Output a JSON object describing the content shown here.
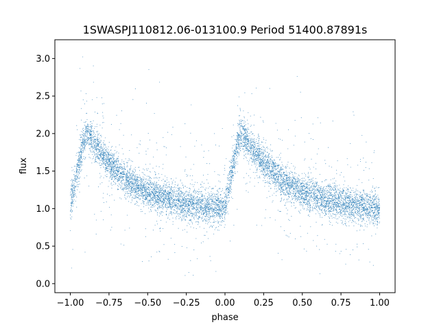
{
  "chart_data": {
    "type": "scatter",
    "title": "1SWASPJ110812.06-013100.9 Period 51400.87891s",
    "xlabel": "phase",
    "ylabel": "flux",
    "xlim": [
      -1.1,
      1.1
    ],
    "ylim": [
      -0.12,
      3.25
    ],
    "xticks": [
      -1.0,
      -0.75,
      -0.5,
      -0.25,
      0.0,
      0.25,
      0.5,
      0.75,
      1.0
    ],
    "xtick_labels": [
      "−1.00",
      "−0.75",
      "−0.50",
      "−0.25",
      "0.00",
      "0.25",
      "0.50",
      "0.75",
      "1.00"
    ],
    "yticks": [
      0.0,
      0.5,
      1.0,
      1.5,
      2.0,
      2.5,
      3.0
    ],
    "ytick_labels": [
      "0.0",
      "0.5",
      "1.0",
      "1.5",
      "2.0",
      "2.5",
      "3.0"
    ],
    "grid": false,
    "marker_color": "#1f77b4",
    "series": [
      {
        "profile": {
          "phase": [
            0.0,
            0.03,
            0.06,
            0.09,
            0.11,
            0.14,
            0.2,
            0.3,
            0.4,
            0.5,
            0.6,
            0.7,
            0.8,
            0.9,
            1.0
          ],
          "flux": [
            1.05,
            1.35,
            1.65,
            1.95,
            2.02,
            1.92,
            1.72,
            1.5,
            1.33,
            1.22,
            1.15,
            1.1,
            1.05,
            1.02,
            1.0
          ]
        },
        "phase_range": [
          -1.0,
          1.0
        ],
        "flux_range": [
          0.02,
          3.1
        ]
      }
    ]
  }
}
